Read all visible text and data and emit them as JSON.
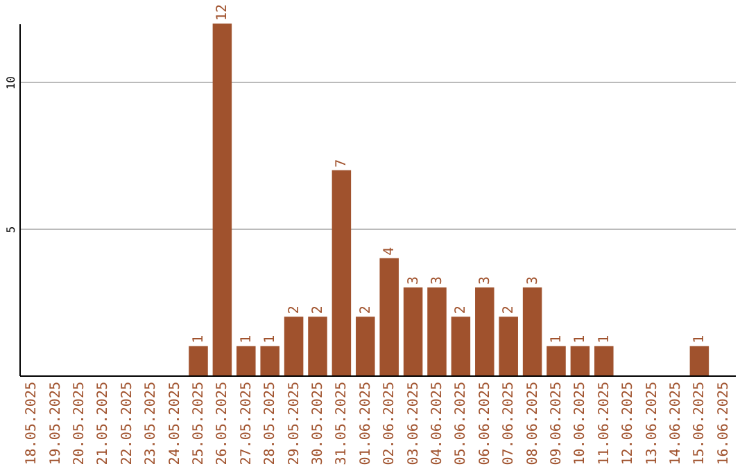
{
  "chart_data": {
    "type": "bar",
    "categories": [
      "18.05.2025",
      "19.05.2025",
      "20.05.2025",
      "21.05.2025",
      "22.05.2025",
      "23.05.2025",
      "24.05.2025",
      "25.05.2025",
      "26.05.2025",
      "27.05.2025",
      "28.05.2025",
      "29.05.2025",
      "30.05.2025",
      "31.05.2025",
      "01.06.2025",
      "02.06.2025",
      "03.06.2025",
      "04.06.2025",
      "05.06.2025",
      "06.06.2025",
      "07.06.2025",
      "08.06.2025",
      "09.06.2025",
      "10.06.2025",
      "11.06.2025",
      "12.06.2025",
      "13.06.2025",
      "14.06.2025",
      "15.06.2025",
      "16.06.2025"
    ],
    "values": [
      0,
      0,
      0,
      0,
      0,
      0,
      0,
      1,
      12,
      1,
      1,
      2,
      2,
      7,
      2,
      4,
      3,
      3,
      2,
      3,
      2,
      3,
      1,
      1,
      1,
      0,
      0,
      0,
      1,
      0
    ],
    "value_labels": [
      null,
      null,
      null,
      null,
      null,
      null,
      null,
      "1",
      "12",
      "1",
      "1",
      "2",
      "2",
      "7",
      "2",
      "4",
      "3",
      "3",
      "2",
      "3",
      "2",
      "3",
      "1",
      "1",
      "1",
      null,
      null,
      null,
      "1",
      null
    ],
    "color": "#a0522d",
    "ylim": [
      0,
      12
    ],
    "yticks": [
      5,
      10
    ],
    "grid": "y"
  }
}
